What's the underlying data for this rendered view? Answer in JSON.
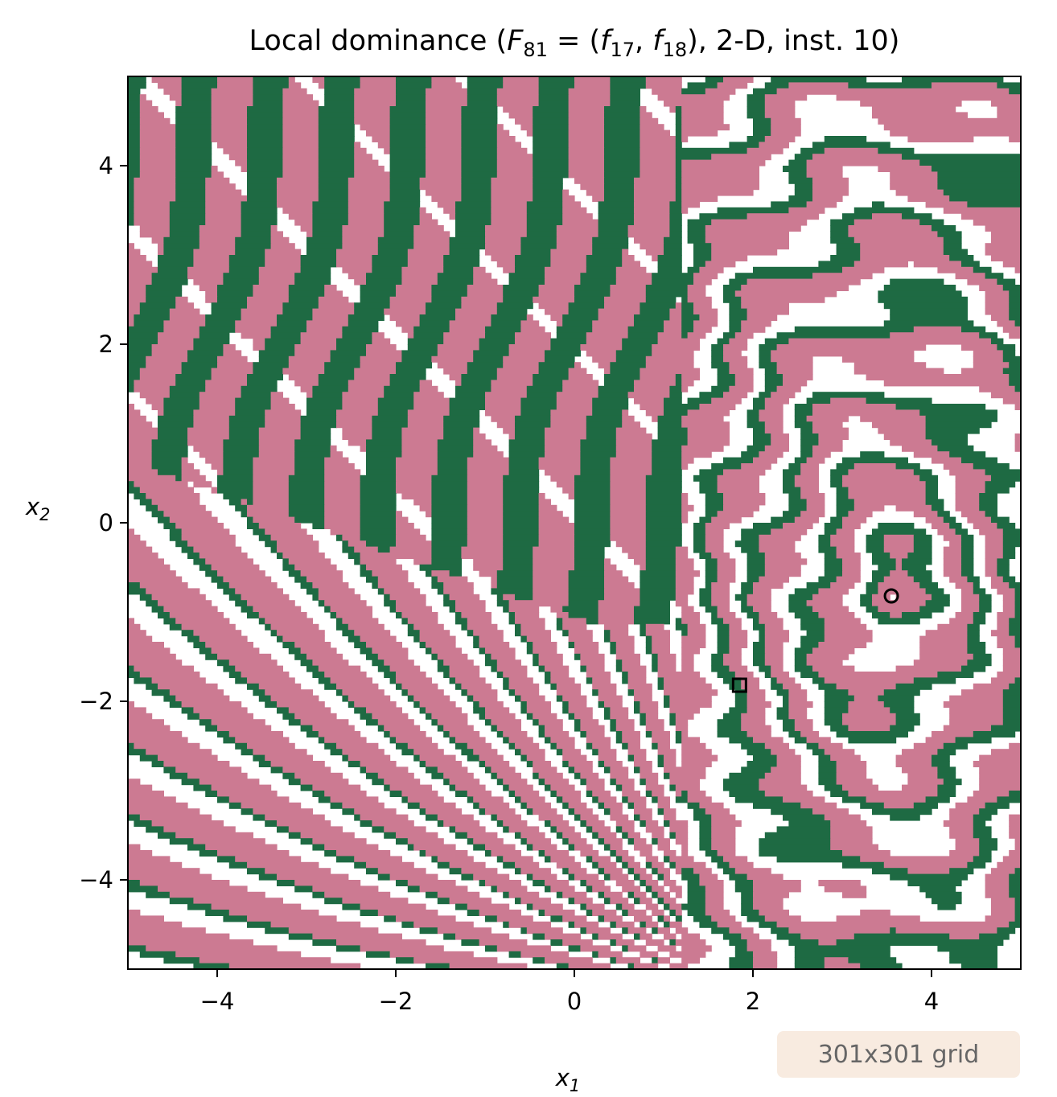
{
  "chart_data": {
    "type": "heatmap",
    "title": {
      "prefix": "Local dominance (",
      "F": "F",
      "F_sub": "81",
      "eq": " = (",
      "f1": "f",
      "f1_sub": "17",
      "sep": ", ",
      "f2": "f",
      "f2_sub": "18",
      "suffix": "), 2-D, inst. 10)"
    },
    "xlabel": {
      "var": "x",
      "sub": "1"
    },
    "ylabel": {
      "var": "x",
      "sub": "2"
    },
    "xlim": [
      -5,
      5
    ],
    "ylim": [
      -5,
      5
    ],
    "xticks": [
      -4,
      -2,
      0,
      2,
      4
    ],
    "yticks": [
      -4,
      -2,
      0,
      2,
      4
    ],
    "grid": false,
    "grid_size": 301,
    "colors": {
      "pink": "#cc7a92",
      "green": "#1e6a43",
      "white": "#ffffff"
    },
    "markers": [
      {
        "shape": "circle",
        "x": 3.55,
        "y": -0.82
      },
      {
        "shape": "square",
        "x": 1.85,
        "y": -1.82
      }
    ],
    "annotation": "301x301 grid"
  }
}
